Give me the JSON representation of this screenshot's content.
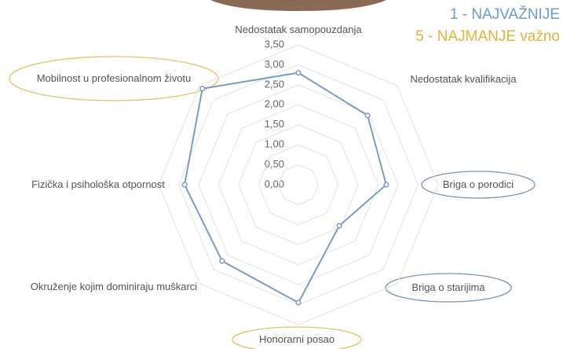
{
  "chart_data": {
    "type": "radar",
    "categories": [
      "Nedostatak samopouzdanja",
      "Nedostatak kvalifikacija",
      "Briga o porodici",
      "Briga o starijima",
      "Honorarni posao",
      "Okruženje kojim dominiraju muškarci",
      "Fizička i psihološka otpornost",
      "Mobilnost u profesionalnom životu"
    ],
    "series": [
      {
        "color": "#7a9cc6",
        "values": [
          2.8,
          2.45,
          2.2,
          1.45,
          2.95,
          2.7,
          2.85,
          3.4
        ]
      }
    ],
    "rlim": [
      0,
      3.5
    ],
    "rticks": [
      {
        "value": 0,
        "label": "0,00"
      },
      {
        "value": 0.5,
        "label": "0,50"
      },
      {
        "value": 1,
        "label": "1,00"
      },
      {
        "value": 1.5,
        "label": "1,50"
      },
      {
        "value": 2,
        "label": "2,00"
      },
      {
        "value": 2.5,
        "label": "2,50"
      },
      {
        "value": 3,
        "label": "3,00"
      },
      {
        "value": 3.5,
        "label": "3,50"
      }
    ],
    "grid": true,
    "annotations": [
      {
        "text": "1 - NAJVAŽNIJE",
        "color": "#6a9bd1"
      },
      {
        "text": "5 - NAJMANJE važno",
        "color": "#e3b23c"
      }
    ]
  }
}
